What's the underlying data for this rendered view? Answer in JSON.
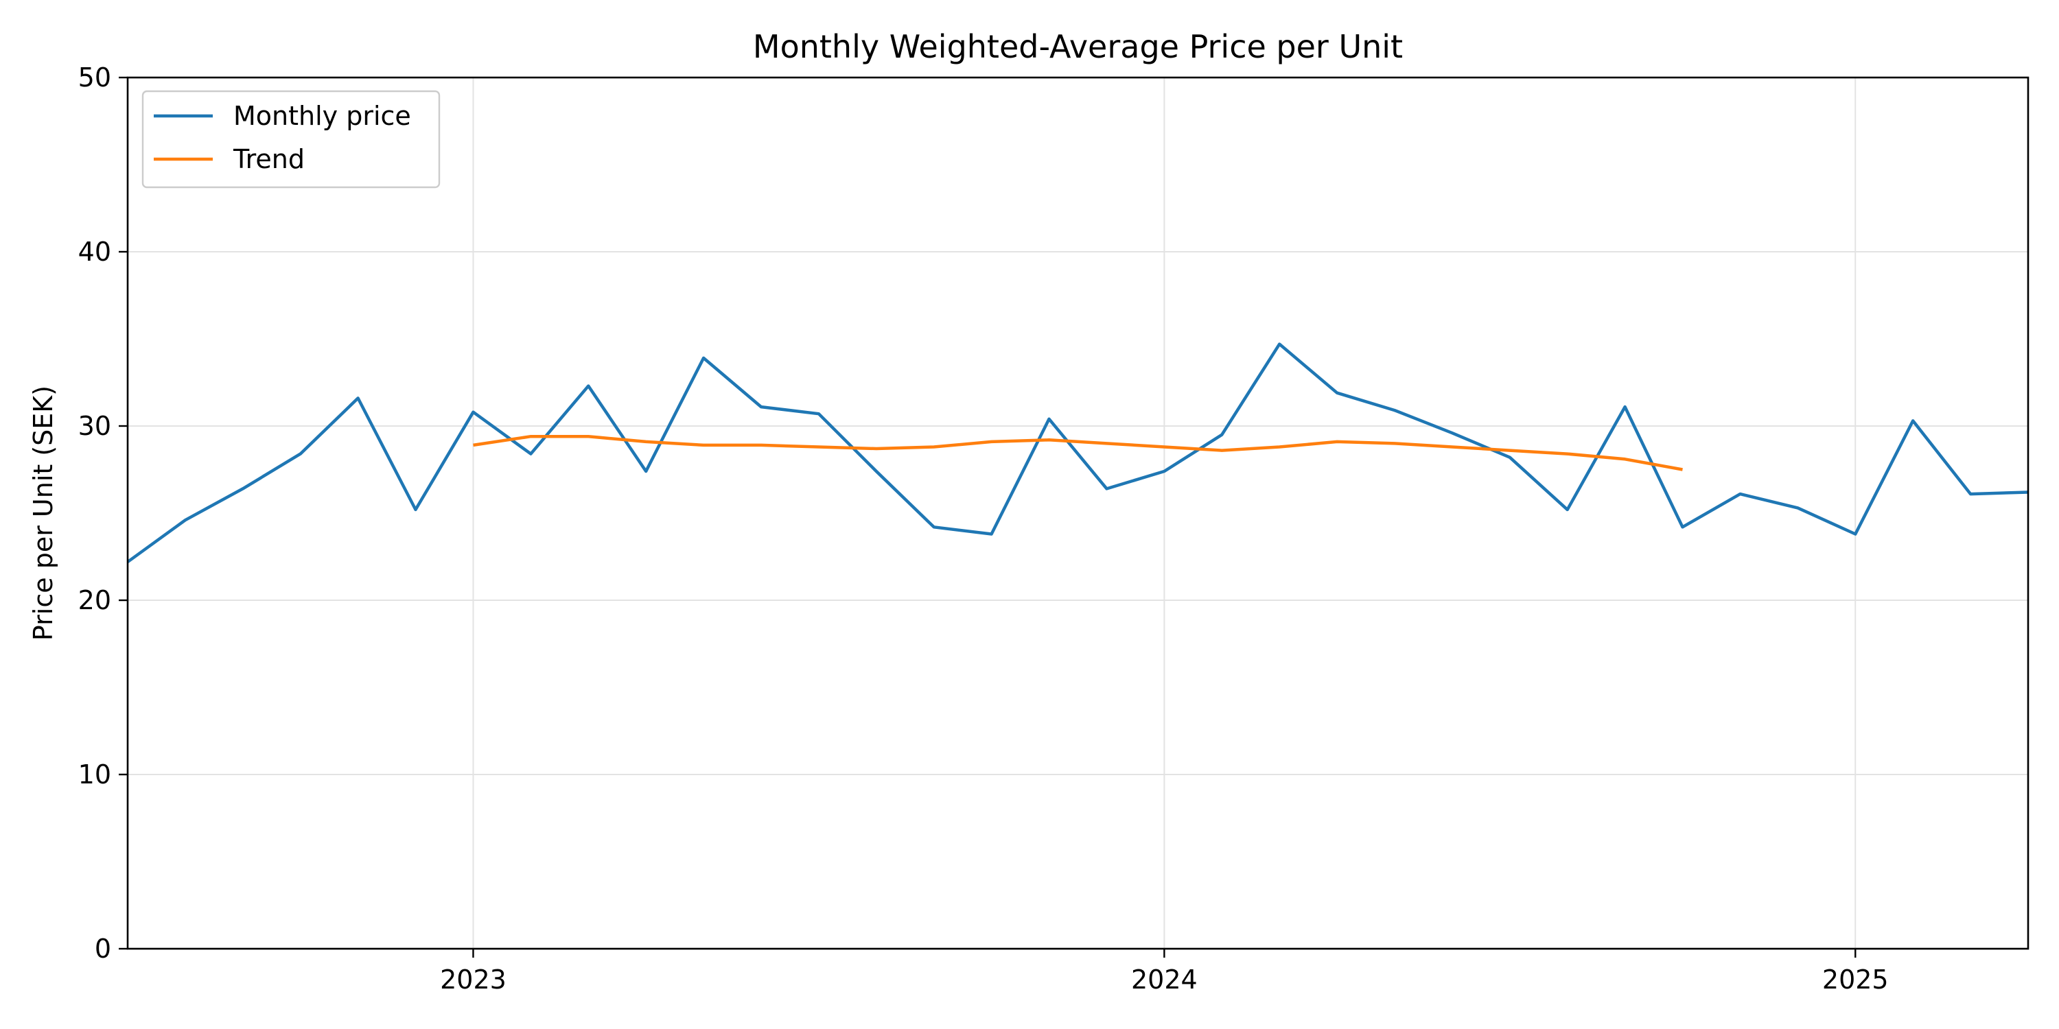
{
  "chart_data": {
    "type": "line",
    "title": "Monthly Weighted-Average Price per Unit",
    "xlabel": "",
    "ylabel": "Price per Unit (SEK)",
    "xlim": [
      "2022-07",
      "2025-04"
    ],
    "ylim": [
      0,
      50
    ],
    "x_ticks": [
      "2023",
      "2024",
      "2025"
    ],
    "y_ticks": [
      "0",
      "10",
      "20",
      "30",
      "40",
      "50"
    ],
    "grid": true,
    "legend_position": "top-left",
    "series": [
      {
        "name": "Monthly price",
        "color": "#1f77b4",
        "points": [
          {
            "x": "2022-07",
            "y": 22.2
          },
          {
            "x": "2022-08",
            "y": 24.6
          },
          {
            "x": "2022-09",
            "y": 26.4
          },
          {
            "x": "2022-10",
            "y": 28.4
          },
          {
            "x": "2022-11",
            "y": 31.6
          },
          {
            "x": "2022-12",
            "y": 25.2
          },
          {
            "x": "2023-01",
            "y": 30.8
          },
          {
            "x": "2023-02",
            "y": 28.4
          },
          {
            "x": "2023-03",
            "y": 32.3
          },
          {
            "x": "2023-04",
            "y": 27.4
          },
          {
            "x": "2023-05",
            "y": 33.9
          },
          {
            "x": "2023-06",
            "y": 31.1
          },
          {
            "x": "2023-07",
            "y": 30.7
          },
          {
            "x": "2023-08",
            "y": 27.4
          },
          {
            "x": "2023-09",
            "y": 24.2
          },
          {
            "x": "2023-10",
            "y": 23.8
          },
          {
            "x": "2023-11",
            "y": 30.4
          },
          {
            "x": "2023-12",
            "y": 26.4
          },
          {
            "x": "2024-01",
            "y": 27.4
          },
          {
            "x": "2024-02",
            "y": 29.5
          },
          {
            "x": "2024-03",
            "y": 34.7
          },
          {
            "x": "2024-04",
            "y": 31.9
          },
          {
            "x": "2024-05",
            "y": 30.9
          },
          {
            "x": "2024-06",
            "y": 29.6
          },
          {
            "x": "2024-07",
            "y": 28.2
          },
          {
            "x": "2024-08",
            "y": 25.2
          },
          {
            "x": "2024-09",
            "y": 31.1
          },
          {
            "x": "2024-10",
            "y": 24.2
          },
          {
            "x": "2024-11",
            "y": 26.1
          },
          {
            "x": "2024-12",
            "y": 25.3
          },
          {
            "x": "2025-01",
            "y": 23.8
          },
          {
            "x": "2025-02",
            "y": 30.3
          },
          {
            "x": "2025-03",
            "y": 26.1
          },
          {
            "x": "2025-04",
            "y": 26.2
          }
        ]
      },
      {
        "name": "Trend",
        "color": "#ff7f0e",
        "points": [
          {
            "x": "2023-01",
            "y": 28.9
          },
          {
            "x": "2023-02",
            "y": 29.4
          },
          {
            "x": "2023-03",
            "y": 29.4
          },
          {
            "x": "2023-04",
            "y": 29.1
          },
          {
            "x": "2023-05",
            "y": 28.9
          },
          {
            "x": "2023-06",
            "y": 28.9
          },
          {
            "x": "2023-07",
            "y": 28.8
          },
          {
            "x": "2023-08",
            "y": 28.7
          },
          {
            "x": "2023-09",
            "y": 28.8
          },
          {
            "x": "2023-10",
            "y": 29.1
          },
          {
            "x": "2023-11",
            "y": 29.2
          },
          {
            "x": "2023-12",
            "y": 29.0
          },
          {
            "x": "2024-01",
            "y": 28.8
          },
          {
            "x": "2024-02",
            "y": 28.6
          },
          {
            "x": "2024-03",
            "y": 28.8
          },
          {
            "x": "2024-04",
            "y": 29.1
          },
          {
            "x": "2024-05",
            "y": 29.0
          },
          {
            "x": "2024-06",
            "y": 28.8
          },
          {
            "x": "2024-07",
            "y": 28.6
          },
          {
            "x": "2024-08",
            "y": 28.4
          },
          {
            "x": "2024-09",
            "y": 28.1
          },
          {
            "x": "2024-10",
            "y": 27.5
          }
        ]
      }
    ]
  }
}
